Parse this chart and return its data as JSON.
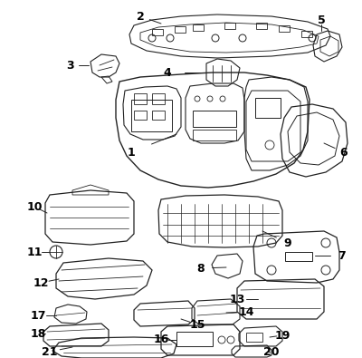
{
  "background_color": "#ffffff",
  "line_color": "#222222",
  "label_color": "#000000",
  "fig_width": 4.0,
  "fig_height": 3.95,
  "dpi": 100
}
